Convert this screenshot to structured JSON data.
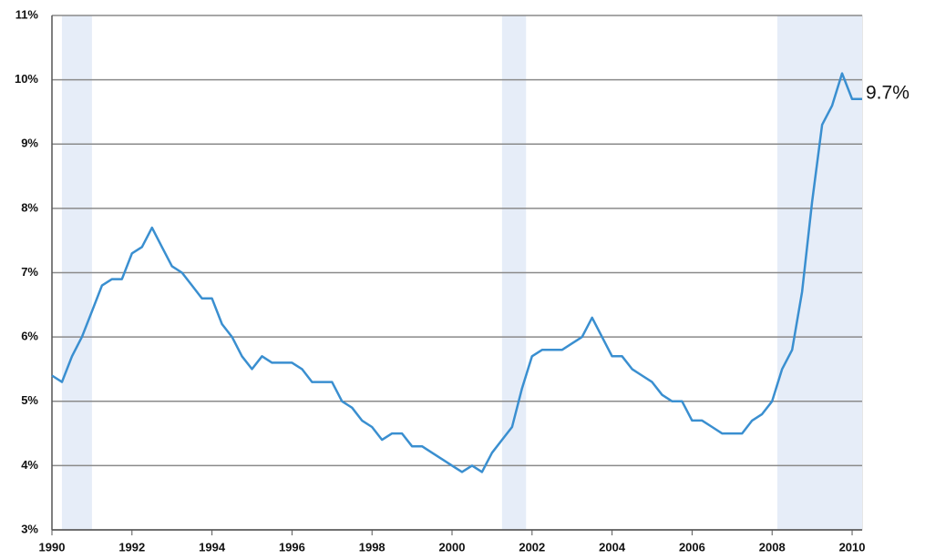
{
  "chart_data": {
    "type": "line",
    "color": "#3a8fd0",
    "x": [
      1990.0,
      1990.25,
      1990.5,
      1990.75,
      1991.0,
      1991.25,
      1991.5,
      1991.75,
      1992.0,
      1992.25,
      1992.5,
      1992.75,
      1993.0,
      1993.25,
      1993.5,
      1993.75,
      1994.0,
      1994.25,
      1994.5,
      1994.75,
      1995.0,
      1995.25,
      1995.5,
      1995.75,
      1996.0,
      1996.25,
      1996.5,
      1996.75,
      1997.0,
      1997.25,
      1997.5,
      1997.75,
      1998.0,
      1998.25,
      1998.5,
      1998.75,
      1999.0,
      1999.25,
      1999.5,
      1999.75,
      2000.0,
      2000.25,
      2000.5,
      2000.75,
      2001.0,
      2001.25,
      2001.5,
      2001.75,
      2002.0,
      2002.25,
      2002.5,
      2002.75,
      2003.0,
      2003.25,
      2003.5,
      2003.75,
      2004.0,
      2004.25,
      2004.5,
      2004.75,
      2005.0,
      2005.25,
      2005.5,
      2005.75,
      2006.0,
      2006.25,
      2006.5,
      2006.75,
      2007.0,
      2007.25,
      2007.5,
      2007.75,
      2008.0,
      2008.25,
      2008.5,
      2008.75,
      2009.0,
      2009.25,
      2009.5,
      2009.75,
      2010.0,
      2010.25
    ],
    "values": [
      5.4,
      5.3,
      5.7,
      6.0,
      6.4,
      6.8,
      6.9,
      6.9,
      7.3,
      7.4,
      7.7,
      7.4,
      7.1,
      7.0,
      6.8,
      6.6,
      6.6,
      6.2,
      6.0,
      5.7,
      5.5,
      5.7,
      5.6,
      5.6,
      5.6,
      5.5,
      5.3,
      5.3,
      5.3,
      5.0,
      4.9,
      4.7,
      4.6,
      4.4,
      4.5,
      4.5,
      4.3,
      4.3,
      4.2,
      4.1,
      4.0,
      3.9,
      4.0,
      3.9,
      4.2,
      4.4,
      4.6,
      5.2,
      5.7,
      5.8,
      5.8,
      5.8,
      5.9,
      6.0,
      6.3,
      6.0,
      5.7,
      5.7,
      5.5,
      5.4,
      5.3,
      5.1,
      5.0,
      5.0,
      4.7,
      4.7,
      4.6,
      4.5,
      4.5,
      4.5,
      4.7,
      4.8,
      5.0,
      5.5,
      5.8,
      6.7,
      8.1,
      9.3,
      9.6,
      10.1,
      9.7,
      9.7
    ],
    "xlim": [
      1990,
      2010.25
    ],
    "ylim": [
      3,
      11
    ],
    "xticks": [
      1990,
      1992,
      1994,
      1996,
      1998,
      2000,
      2002,
      2004,
      2006,
      2008,
      2010
    ],
    "yticks": [
      {
        "value": 3,
        "label": "3%"
      },
      {
        "value": 4,
        "label": "4%"
      },
      {
        "value": 5,
        "label": "5%"
      },
      {
        "value": 6,
        "label": "6%"
      },
      {
        "value": 7,
        "label": "7%"
      },
      {
        "value": 8,
        "label": "8%"
      },
      {
        "value": 9,
        "label": "9%"
      },
      {
        "value": 10,
        "label": "10%"
      },
      {
        "value": 11,
        "label": "11%"
      }
    ],
    "grid": true,
    "shaded_ranges": [
      [
        1990.25,
        1991.0
      ],
      [
        2001.25,
        2001.85
      ],
      [
        2008.13,
        2010.25
      ]
    ],
    "shade_color": "#e6edf8",
    "annotations": [
      {
        "text": "9.7%",
        "value": 9.7
      }
    ]
  }
}
